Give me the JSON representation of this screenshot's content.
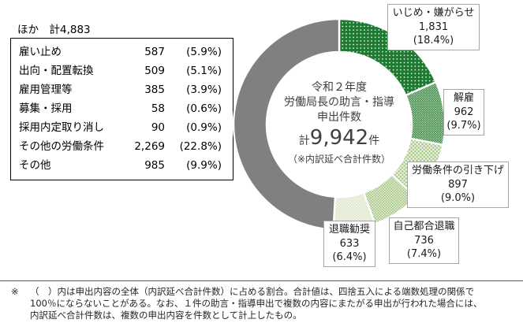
{
  "other_breakdown": {
    "heading": "ほか　計4,883",
    "rows": [
      {
        "label": "雇い止め",
        "value": "587",
        "pct": "(5.9%)"
      },
      {
        "label": "出向・配置転換",
        "value": "509",
        "pct": "(5.1%)"
      },
      {
        "label": "雇用管理等",
        "value": "385",
        "pct": "(3.9%)"
      },
      {
        "label": "募集・採用",
        "value": "58",
        "pct": "(0.6%)"
      },
      {
        "label": "採用内定取り消し",
        "value": "90",
        "pct": "(0.9%)"
      },
      {
        "label": "その他の労働条件",
        "value": "2,269",
        "pct": "(22.8%)"
      },
      {
        "label": "その他",
        "value": "985",
        "pct": "(9.9%)"
      }
    ]
  },
  "chart_data": {
    "type": "pie",
    "subtype": "donut",
    "start_angle_deg": 0,
    "clockwise": true,
    "center_title_lines": [
      "令和２年度",
      "労働局長の助言・指導",
      "申出件数"
    ],
    "center_total": {
      "prefix": "計",
      "value": "9,942",
      "suffix": "件"
    },
    "center_note": "（※内訳延べ合計件数）",
    "total_value": 9942,
    "slices": [
      {
        "key": "ijime",
        "label": "いじめ・嫌がらせ",
        "value": 1831,
        "value_text": "1,831",
        "pct": 18.4,
        "pct_text": "(18.4%)",
        "color": "#1e7a31",
        "pattern": "dots"
      },
      {
        "key": "kaiko",
        "label": "解雇",
        "value": 962,
        "value_text": "962",
        "pct": 9.7,
        "pct_text": "(9.7%)",
        "color": "#3f8c46",
        "pattern": "dense-dots"
      },
      {
        "key": "roudou",
        "label": "労働条件の引き下げ",
        "value": 897,
        "value_text": "897",
        "pct": 9.0,
        "pct_text": "(9.0%)",
        "color": "#a5c680",
        "pattern": "crosshatch"
      },
      {
        "key": "jiko",
        "label": "自己都合退職",
        "value": 736,
        "value_text": "736",
        "pct": 7.4,
        "pct_text": "(7.4%)",
        "color": "#9dc076",
        "pattern": "fine-crosshatch"
      },
      {
        "key": "taishoku",
        "label": "退職勧奨",
        "value": 633,
        "value_text": "633",
        "pct": 6.4,
        "pct_text": "(6.4%)",
        "color": "#d7e3c2",
        "pattern": "fine-crosshatch"
      },
      {
        "key": "hoka",
        "label": "ほか",
        "value": 4883,
        "value_text": "4,883",
        "pct": 49.1,
        "pct_text": "",
        "color": "#808080",
        "pattern": "solid"
      }
    ]
  },
  "footnote": {
    "marker": "※",
    "lines": [
      "（　）内は申出内容の全体（内訳延べ合計件数）に占める割合。合計値は、四捨五入による端数処理の関係で",
      "100％にならないことがある。なお、１件の助言・指導申出で複数の内容にまたがる申出が行われた場合には、",
      "内訳延べ合計件数は、複数の申出内容を件数として計上したもの。"
    ]
  }
}
